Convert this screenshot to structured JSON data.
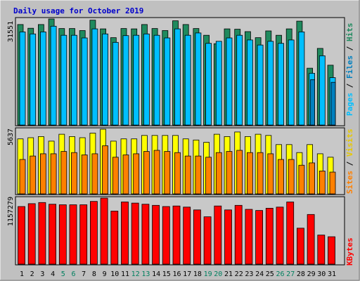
{
  "title": "Daily usage for October 2019",
  "colors": {
    "title": "#0000cc",
    "frame_bg": "#c0c0c0",
    "plot_bg": "#c8c8c8",
    "hits": "#1f8a5e",
    "files": "#00bfff",
    "pages": "#0080c0",
    "visits": "#ffff00",
    "sites": "#ff8000",
    "kbytes": "#ff0000",
    "weekday_label": "#000000",
    "weekend_label": "#00805f"
  },
  "chart_data": [
    {
      "type": "bar",
      "panel": "hits-files-pages",
      "ylabel_parts": [
        "Pages",
        "Files",
        "Hits"
      ],
      "ymax_label": "31551",
      "ylim": [
        0,
        31551
      ],
      "categories": [
        "1",
        "2",
        "3",
        "4",
        "5",
        "6",
        "7",
        "8",
        "9",
        "10",
        "11",
        "12",
        "13",
        "14",
        "15",
        "16",
        "17",
        "18",
        "19",
        "20",
        "21",
        "22",
        "23",
        "24",
        "25",
        "26",
        "27",
        "28",
        "29",
        "30",
        "31"
      ],
      "series": [
        {
          "name": "Hits",
          "values": [
            29900,
            28800,
            29900,
            31550,
            28700,
            28700,
            28100,
            31200,
            28600,
            26000,
            28700,
            28600,
            29900,
            28700,
            28100,
            31000,
            29900,
            28700,
            26700,
            24200,
            28600,
            28500,
            27800,
            26000,
            28000,
            26700,
            28600,
            30900,
            16900,
            22800,
            17800
          ]
        },
        {
          "name": "Files",
          "values": [
            27700,
            27100,
            27700,
            29400,
            26700,
            26700,
            25900,
            28600,
            27100,
            24600,
            26600,
            26700,
            27100,
            26700,
            25900,
            28600,
            26700,
            27400,
            24300,
            24900,
            25900,
            26700,
            25300,
            23800,
            24900,
            24300,
            25300,
            27700,
            15400,
            20600,
            14100
          ]
        },
        {
          "name": "Pages",
          "values": [
            0,
            0,
            0,
            0,
            0,
            0,
            0,
            0,
            0,
            0,
            0,
            0,
            0,
            0,
            0,
            0,
            0,
            0,
            0,
            0,
            0,
            0,
            0,
            0,
            0,
            0,
            0,
            0,
            13500,
            0,
            12700
          ]
        }
      ]
    },
    {
      "type": "bar",
      "panel": "visits-sites",
      "ylabel_parts": [
        "Sites",
        "Visits"
      ],
      "ymax_label": "5637",
      "ylim": [
        0,
        5637
      ],
      "categories": [
        "1",
        "2",
        "3",
        "4",
        "5",
        "6",
        "7",
        "8",
        "9",
        "10",
        "11",
        "12",
        "13",
        "14",
        "15",
        "16",
        "17",
        "18",
        "19",
        "20",
        "21",
        "22",
        "23",
        "24",
        "25",
        "26",
        "27",
        "28",
        "29",
        "30",
        "31"
      ],
      "series": [
        {
          "name": "Visits",
          "values": [
            4800,
            4900,
            5000,
            4600,
            5200,
            5000,
            4900,
            5300,
            5637,
            4600,
            4800,
            4800,
            5100,
            5100,
            5100,
            5100,
            4800,
            4700,
            4500,
            5200,
            5000,
            5400,
            5000,
            5200,
            5100,
            4300,
            4300,
            3600,
            4300,
            3500,
            3200
          ]
        },
        {
          "name": "Sites",
          "values": [
            3000,
            3300,
            3500,
            3500,
            3700,
            3600,
            3400,
            3500,
            4200,
            3200,
            3400,
            3500,
            3700,
            3800,
            3700,
            3600,
            3300,
            3300,
            3200,
            3600,
            3700,
            3800,
            3600,
            3600,
            3500,
            3000,
            3000,
            2500,
            2700,
            2000,
            1900
          ]
        }
      ]
    },
    {
      "type": "bar",
      "panel": "kbytes",
      "ylabel": "KBytes",
      "ymax_label": "1157279",
      "ylim": [
        0,
        1157279
      ],
      "categories": [
        "1",
        "2",
        "3",
        "4",
        "5",
        "6",
        "7",
        "8",
        "9",
        "10",
        "11",
        "12",
        "13",
        "14",
        "15",
        "16",
        "17",
        "18",
        "19",
        "20",
        "21",
        "22",
        "23",
        "24",
        "25",
        "26",
        "27",
        "28",
        "29",
        "30",
        "31"
      ],
      "series": [
        {
          "name": "KBytes",
          "values": [
            1010000,
            1060000,
            1080000,
            1050000,
            1040000,
            1040000,
            1040000,
            1100000,
            1157279,
            930000,
            1090000,
            1070000,
            1050000,
            1030000,
            1010000,
            1020000,
            1000000,
            950000,
            830000,
            1020000,
            950000,
            1030000,
            960000,
            940000,
            980000,
            1000000,
            1090000,
            630000,
            870000,
            510000,
            480000
          ]
        }
      ]
    }
  ],
  "x_labels": [
    "1",
    "2",
    "3",
    "4",
    "5",
    "6",
    "7",
    "8",
    "9",
    "10",
    "11",
    "12",
    "13",
    "14",
    "15",
    "16",
    "17",
    "18",
    "19",
    "20",
    "21",
    "22",
    "23",
    "24",
    "25",
    "26",
    "27",
    "28",
    "29",
    "30",
    "31"
  ],
  "weekend_days": [
    5,
    6,
    12,
    13,
    19,
    20,
    26,
    27
  ]
}
